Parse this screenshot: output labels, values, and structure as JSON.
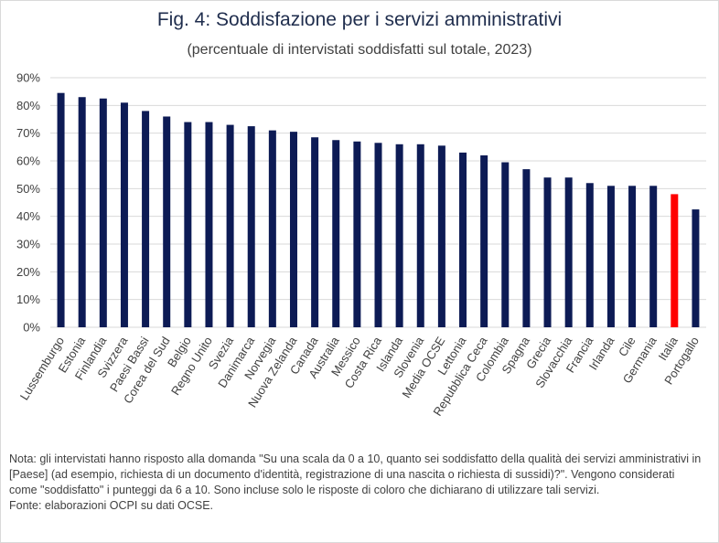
{
  "title": "Fig. 4: Soddisfazione per i servizi amministrativi",
  "subtitle": "(percentuale di intervistati soddisfatti sul totale, 2023)",
  "note": "Nota: gli intervistati hanno risposto alla domanda \"Su una scala da 0 a 10, quanto sei soddisfatto della qualità dei servizi amministrativi in [Paese] (ad esempio, richiesta di un documento d'identità, registrazione di una nascita o richiesta di sussidi)?\". Vengono considerati come \"soddisfatto\" i punteggi da 6 a 10. Sono incluse solo le risposte di coloro che dichiarano di utilizzare tali servizi.",
  "source": "Fonte: elaborazioni OCPI su dati OCSE.",
  "colors": {
    "bar": "#0d1b55",
    "highlight": "#ff0000",
    "grid": "#d9d9d9",
    "text": "#404040"
  },
  "chart_data": {
    "type": "bar",
    "categories": [
      "Lussemburgo",
      "Estonia",
      "Finlandia",
      "Svizzera",
      "Paesi Bassi",
      "Corea del Sud",
      "Belgio",
      "Regno Unito",
      "Svezia",
      "Danimarca",
      "Norvegia",
      "Nuova Zelanda",
      "Canada",
      "Australia",
      "Messico",
      "Costa Rica",
      "Islanda",
      "Slovenia",
      "Media OCSE",
      "Lettonia",
      "Repubblica Ceca",
      "Colombia",
      "Spagna",
      "Grecia",
      "Slovacchia",
      "Francia",
      "Irlanda",
      "Cile",
      "Germania",
      "Italia",
      "Portogallo"
    ],
    "values": [
      84.5,
      83,
      82.5,
      81,
      78,
      76,
      74,
      74,
      73,
      72.5,
      71,
      70.5,
      68.5,
      67.5,
      67,
      66.5,
      66,
      66,
      65.5,
      63,
      62,
      59.5,
      57,
      54,
      54,
      52,
      51,
      51,
      51,
      48,
      42.5
    ],
    "highlight_category": "Italia",
    "yticks": [
      "0%",
      "10%",
      "20%",
      "30%",
      "40%",
      "50%",
      "60%",
      "70%",
      "80%",
      "90%"
    ],
    "ylim": [
      0,
      90
    ],
    "grid": true,
    "legend": "none",
    "xlabel": "",
    "ylabel": ""
  }
}
